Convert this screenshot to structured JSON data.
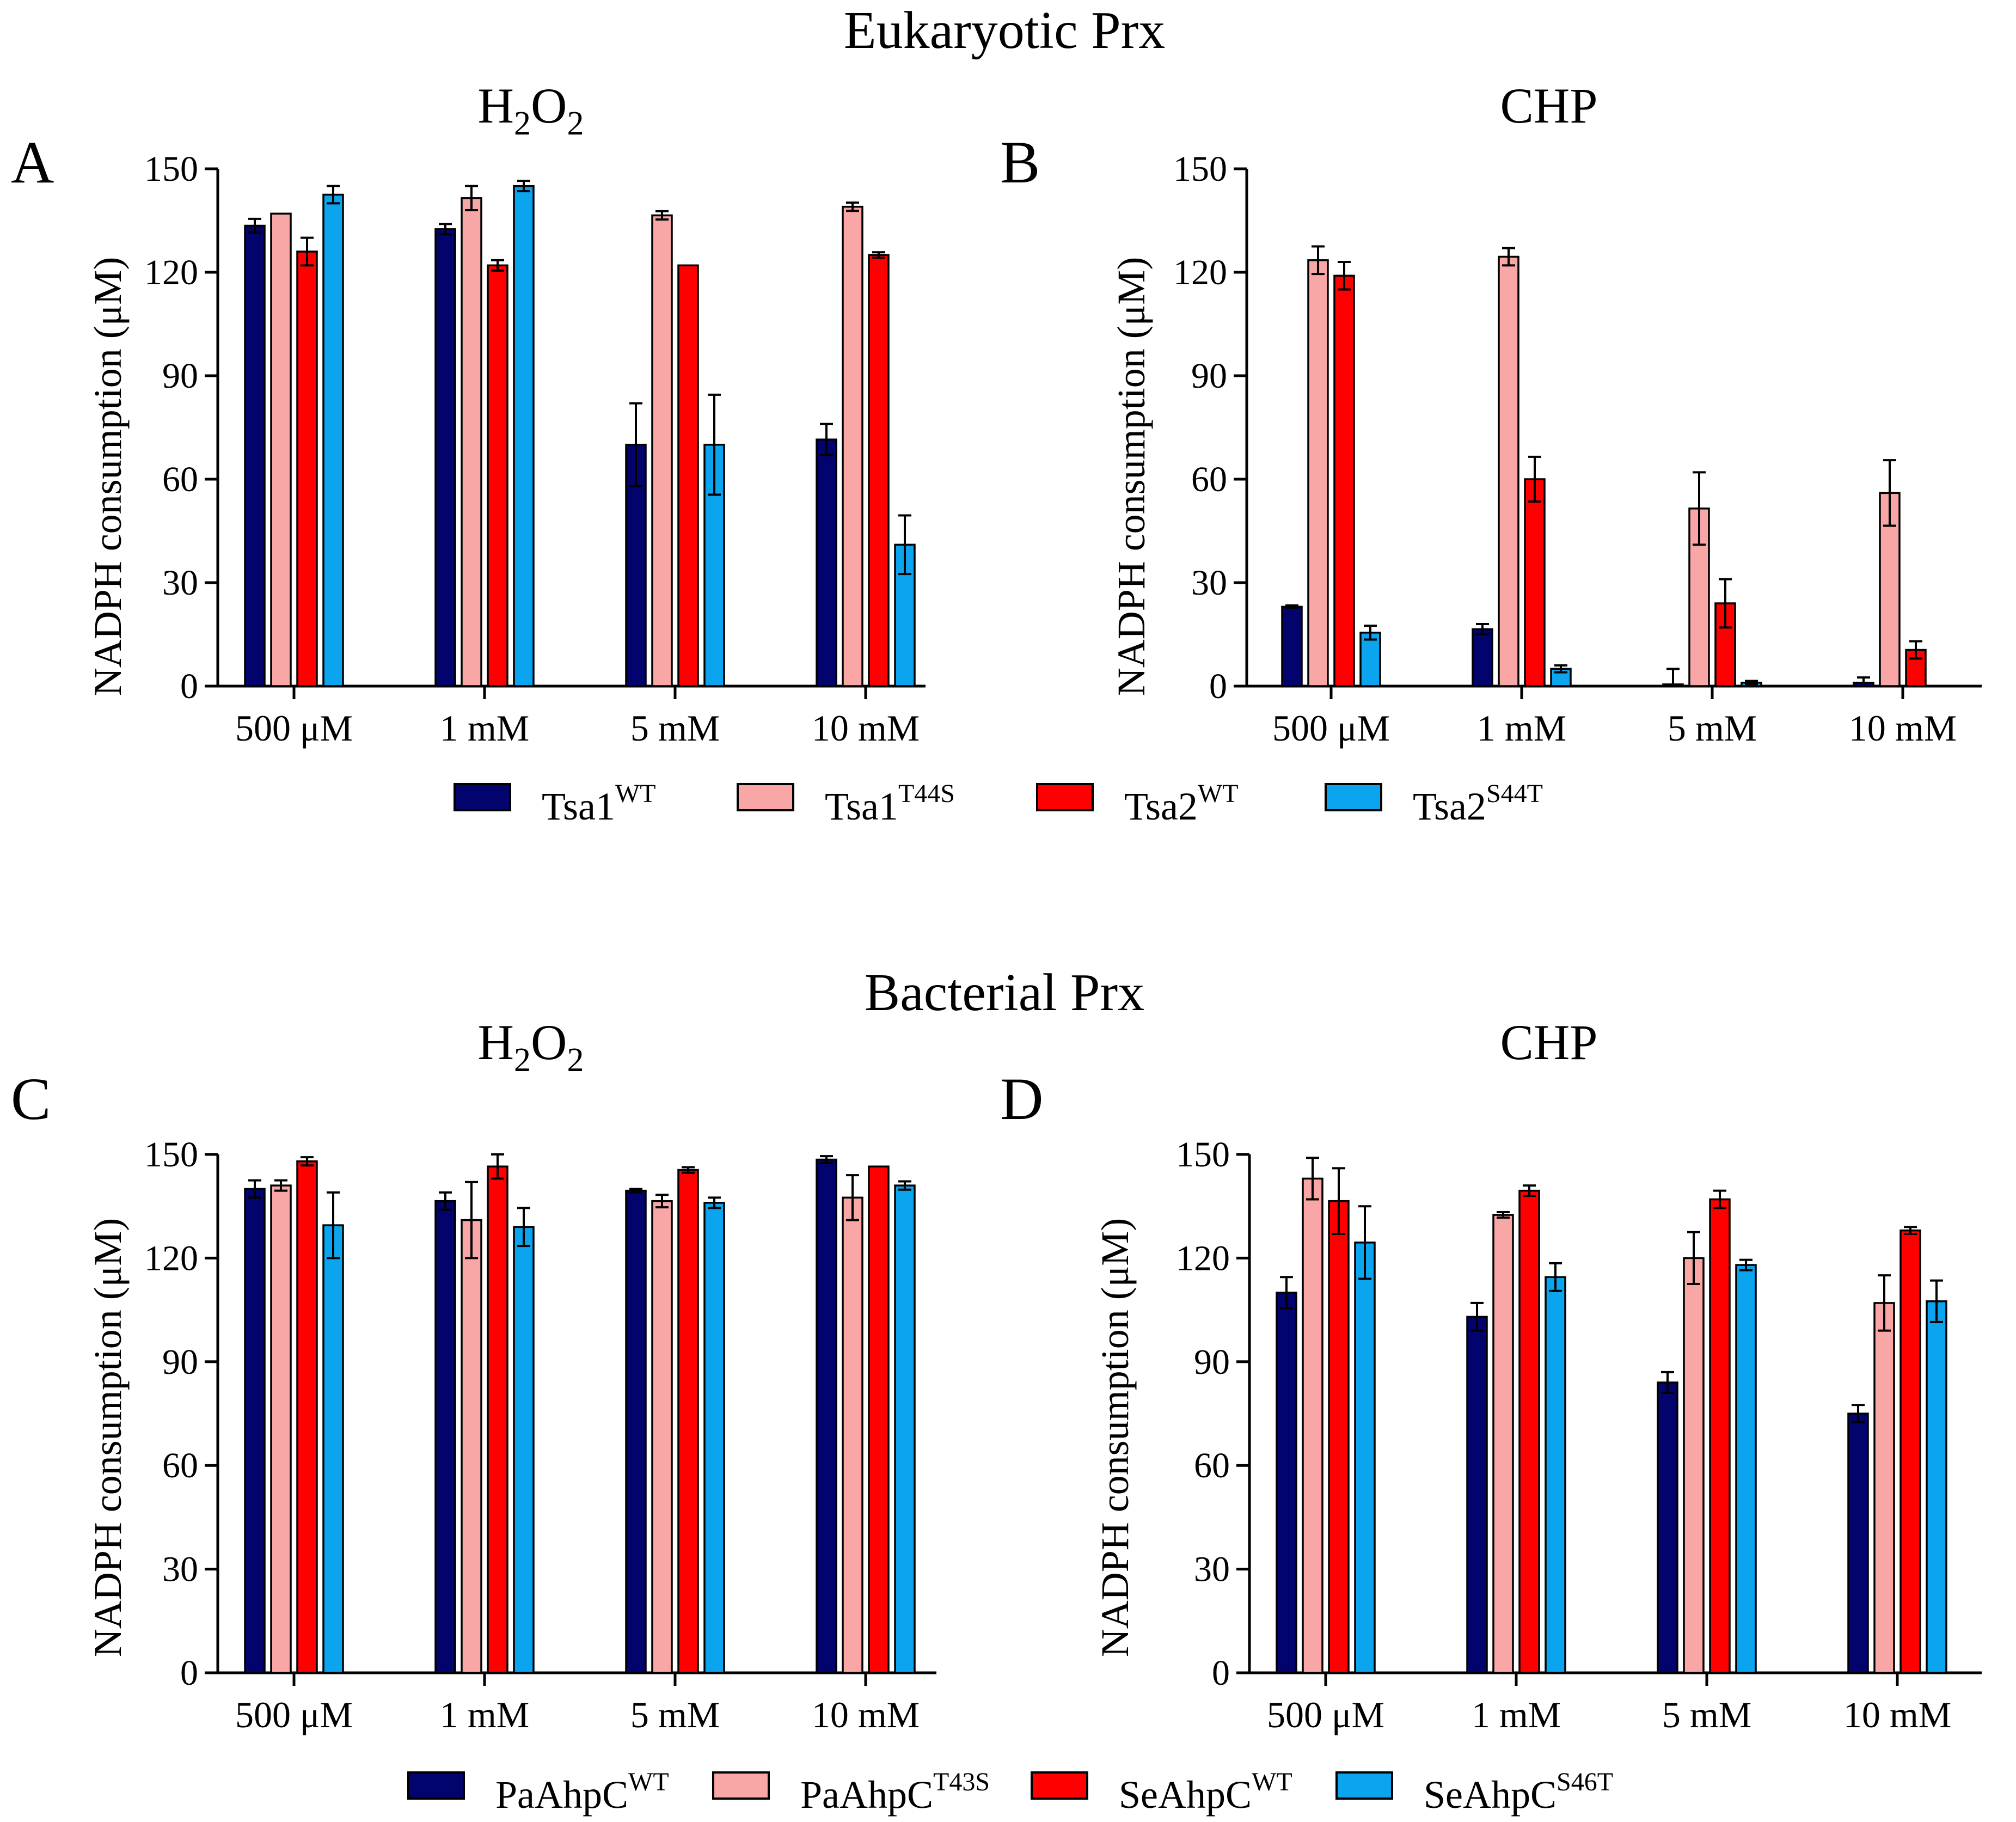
{
  "figure": {
    "top_title": "Eukaryotic Prx",
    "bottom_title": "Bacterial Prx"
  },
  "chart_data": [
    {
      "type": "bar",
      "panel": "A",
      "title_base": "H",
      "title_sub1": "2",
      "title_mid": "O",
      "title_sub2": "2",
      "ylabel": "NADPH consumption (μM)",
      "ylim": [
        0,
        150
      ],
      "yticks": [
        0,
        30,
        60,
        90,
        120,
        150
      ],
      "categories": [
        "500 μM",
        "1 mM",
        "5 mM",
        "10 mM"
      ],
      "series": [
        {
          "name": "Tsa1WT",
          "color": "#03036e",
          "values": [
            133.5,
            132.5,
            70,
            71.5
          ],
          "errors": [
            2,
            1.5,
            12,
            4.5
          ]
        },
        {
          "name": "Tsa1T44S",
          "color": "#f8a6a6",
          "values": [
            137,
            141.5,
            136.5,
            139
          ],
          "errors": [
            0,
            3.5,
            1.2,
            1.2
          ]
        },
        {
          "name": "Tsa2WT",
          "color": "#ff0000",
          "values": [
            126,
            122,
            122,
            125
          ],
          "errors": [
            4,
            1.5,
            0,
            0.8
          ]
        },
        {
          "name": "Tsa2S44T",
          "color": "#0aa5ee",
          "values": [
            142.5,
            145,
            70,
            41
          ],
          "errors": [
            2.5,
            1.5,
            14.5,
            8.5
          ]
        }
      ]
    },
    {
      "type": "bar",
      "panel": "B",
      "title_plain": "CHP",
      "ylabel": "NADPH consumption (μM)",
      "ylim": [
        0,
        150
      ],
      "yticks": [
        0,
        30,
        60,
        90,
        120,
        150
      ],
      "categories": [
        "500 μM",
        "1 mM",
        "5 mM",
        "10 mM"
      ],
      "series": [
        {
          "name": "Tsa1WT",
          "color": "#03036e",
          "values": [
            23,
            16.5,
            0.5,
            1
          ],
          "errors": [
            0.4,
            1.5,
            4.5,
            1.5
          ]
        },
        {
          "name": "Tsa1T44S",
          "color": "#f8a6a6",
          "values": [
            123.5,
            124.5,
            51.5,
            56
          ],
          "errors": [
            4,
            2.5,
            10.5,
            9.5
          ]
        },
        {
          "name": "Tsa2WT",
          "color": "#ff0000",
          "values": [
            119,
            60,
            24,
            10.5
          ],
          "errors": [
            4,
            6.5,
            7,
            2.5
          ]
        },
        {
          "name": "Tsa2S44T",
          "color": "#0aa5ee",
          "values": [
            15.5,
            5,
            1,
            0
          ],
          "errors": [
            2,
            1,
            0.5,
            0
          ]
        }
      ]
    },
    {
      "type": "bar",
      "panel": "C",
      "title_base": "H",
      "title_sub1": "2",
      "title_mid": "O",
      "title_sub2": "2",
      "ylabel": "NADPH consumption (μM)",
      "ylim": [
        0,
        150
      ],
      "yticks": [
        0,
        30,
        60,
        90,
        120,
        150
      ],
      "categories": [
        "500 μM",
        "1 mM",
        "5 mM",
        "10 mM"
      ],
      "series": [
        {
          "name": "PaAhpCWT",
          "color": "#03036e",
          "values": [
            140,
            136.5,
            139.5,
            148.5
          ],
          "errors": [
            2.5,
            2.5,
            0.5,
            1
          ]
        },
        {
          "name": "PaAhpCT43S",
          "color": "#f8a6a6",
          "values": [
            141,
            131,
            136.5,
            137.5
          ],
          "errors": [
            1.5,
            11,
            1.8,
            6.5
          ]
        },
        {
          "name": "SeAhpCWT",
          "color": "#ff0000",
          "values": [
            148,
            146.5,
            145.5,
            146.5
          ],
          "errors": [
            1.2,
            3.5,
            0.8,
            0
          ]
        },
        {
          "name": "SeAhpCS46T",
          "color": "#0aa5ee",
          "values": [
            129.5,
            129,
            136,
            141
          ],
          "errors": [
            9.5,
            5.5,
            1.5,
            1.2
          ]
        }
      ]
    },
    {
      "type": "bar",
      "panel": "D",
      "title_plain": "CHP",
      "ylabel": "NADPH consumption (μM)",
      "ylim": [
        0,
        150
      ],
      "yticks": [
        0,
        30,
        60,
        90,
        120,
        150
      ],
      "categories": [
        "500 μM",
        "1 mM",
        "5 mM",
        "10 mM"
      ],
      "series": [
        {
          "name": "PaAhpCWT",
          "color": "#03036e",
          "values": [
            110,
            103,
            84,
            75
          ],
          "errors": [
            4.5,
            4,
            3,
            2.5
          ]
        },
        {
          "name": "PaAhpCT43S",
          "color": "#f8a6a6",
          "values": [
            143,
            132.5,
            120,
            107
          ],
          "errors": [
            6,
            0.8,
            7.5,
            8
          ]
        },
        {
          "name": "SeAhpCWT",
          "color": "#ff0000",
          "values": [
            136.5,
            139.5,
            137,
            128
          ],
          "errors": [
            9.5,
            1.5,
            2.5,
            1
          ]
        },
        {
          "name": "SeAhpCS46T",
          "color": "#0aa5ee",
          "values": [
            124.5,
            114.5,
            118,
            107.5
          ],
          "errors": [
            10.5,
            4,
            1.5,
            6
          ]
        }
      ]
    }
  ],
  "legends": {
    "top": [
      {
        "base": "Tsa1",
        "sup": "WT",
        "color": "#03036e"
      },
      {
        "base": "Tsa1",
        "sup": "T44S",
        "color": "#f8a6a6"
      },
      {
        "base": "Tsa2",
        "sup": "WT",
        "color": "#ff0000"
      },
      {
        "base": "Tsa2",
        "sup": "S44T",
        "color": "#0aa5ee"
      }
    ],
    "bottom": [
      {
        "base": "PaAhpC",
        "sup": "WT",
        "color": "#03036e"
      },
      {
        "base": "PaAhpC",
        "sup": "T43S",
        "color": "#f8a6a6"
      },
      {
        "base": "SeAhpC",
        "sup": "WT",
        "color": "#ff0000"
      },
      {
        "base": "SeAhpC",
        "sup": "S46T",
        "color": "#0aa5ee"
      }
    ]
  }
}
